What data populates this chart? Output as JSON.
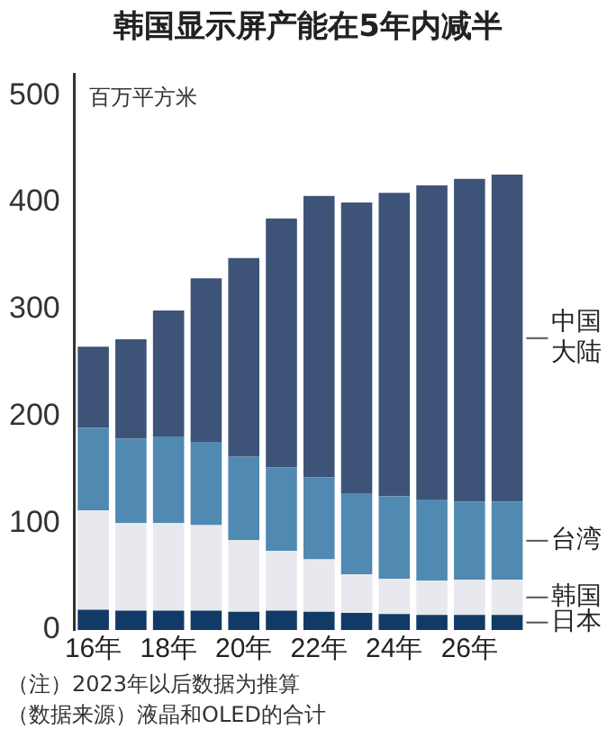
{
  "chart_data": {
    "type": "bar",
    "title": "韩国显示屏产能在5年内减半",
    "ylabel": "百万平方米",
    "categories": [
      "16年",
      null,
      "18年",
      null,
      "20年",
      null,
      "22年",
      null,
      "24年",
      null,
      "26年",
      null
    ],
    "stacked": true,
    "legend": false,
    "grid": false,
    "ylim": [
      0,
      520
    ],
    "yticks": [
      0,
      100,
      200,
      300,
      400,
      500
    ],
    "series": [
      {
        "name": "日本",
        "color": "#123a66",
        "values": [
          19,
          18,
          18,
          18,
          17,
          18,
          17,
          16,
          15,
          14,
          14,
          14
        ]
      },
      {
        "name": "韩国",
        "color": "#e8e9ee",
        "values": [
          93,
          82,
          82,
          80,
          67,
          56,
          49,
          36,
          33,
          32,
          33,
          33
        ]
      },
      {
        "name": "台湾",
        "color": "#5089b2",
        "values": [
          77,
          79,
          81,
          78,
          78,
          78,
          77,
          76,
          77,
          76,
          73,
          73
        ]
      },
      {
        "name": "中国大陆",
        "color": "#3e5378",
        "values": [
          76,
          93,
          118,
          153,
          186,
          233,
          263,
          272,
          284,
          294,
          302,
          306
        ]
      }
    ],
    "annotations": [
      "（注）2023年以后数据为推算",
      "（数据来源）液晶和OLED的合计"
    ]
  }
}
